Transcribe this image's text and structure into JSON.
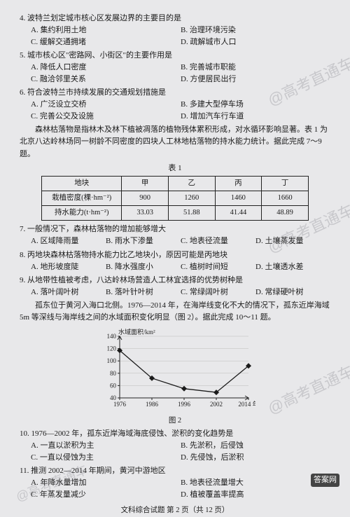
{
  "watermarks": {
    "t1": "@高考直通车",
    "t2": "@高考直通车",
    "t3": "@高考直通车",
    "t4": "@高考直通车",
    "t5": "答案网"
  },
  "q4": {
    "stem": "4. 波特兰划定城市核心区发展边界的主要目的是",
    "a": "A. 集约利用土地",
    "b": "B. 治理环境污染",
    "c": "C. 缓解交通拥堵",
    "d": "D. 疏解城市人口"
  },
  "q5": {
    "stem": "5. 城市核心区\"密路网、小街区\"的主要作用是",
    "a": "A. 降低人口密度",
    "b": "B. 完善城市职能",
    "c": "C. 融洽邻里关系",
    "d": "D. 方便居民出行"
  },
  "q6": {
    "stem": "6. 符合波特兰市持续发展的交通规划措施是",
    "a": "A. 广泛设立交桥",
    "b": "B. 多建大型停车场",
    "c": "C. 完善公交及设施",
    "d": "D. 增加汽车行车道"
  },
  "p1": "森林枯落物是指林木及林下植被凋落的植物残体累积形成，对水循环影响显著。表 1 为北京八达岭林场同一树龄不同密度的四块人工林地枯落物的持水能力统计。据此完成 7～9 题。",
  "table": {
    "title": "表 1",
    "headers": [
      "地块",
      "甲",
      "乙",
      "丙",
      "丁"
    ],
    "row1": [
      "栽植密度(棵·hm⁻²)",
      "900",
      "1260",
      "1460",
      "1660"
    ],
    "row2": [
      "持水能力(t·hm⁻²)",
      "33.03",
      "51.88",
      "41.44",
      "48.89"
    ]
  },
  "q7": {
    "stem": "7. 一般情况下，森林枯落物的增加能够增大",
    "a": "A. 区域降雨量",
    "b": "B. 雨水下渗量",
    "c": "C. 地表径流量",
    "d": "D. 土壤蒸发量"
  },
  "q8": {
    "stem": "8. 丙地块森林枯落物持水能力比乙地块小，原因可能是丙地块",
    "a": "A. 地形坡度陡",
    "b": "B. 降水强度小",
    "c": "C. 植树时间短",
    "d": "D. 土壤透水差"
  },
  "q9": {
    "stem": "9. 从地带性植被考虑，八达岭林场营造人工林宜选择的优势树种是",
    "a": "A. 落叶阔叶树",
    "b": "B. 落叶针叶树",
    "c": "C. 常绿阔叶树",
    "d": "D. 常绿硬叶树"
  },
  "p2": "孤东位于黄河入海口北侧。1976—2014 年，在海岸线变化不大的情况下，孤东近岸海域 5m 等深线与海岸线之间的水域面积变化明显（图 2）。据此完成 10～11 题。",
  "chart": {
    "ylabel": "水域面积/km²",
    "yticks": [
      "40",
      "60",
      "80",
      "100",
      "120",
      "140"
    ],
    "xticks": [
      "1976",
      "1986",
      "1996",
      "2002",
      "2014 年"
    ],
    "points": [
      [
        0,
        117
      ],
      [
        1,
        72
      ],
      [
        2,
        55
      ],
      [
        3,
        49
      ],
      [
        4,
        92
      ]
    ],
    "ylim": [
      40,
      140
    ],
    "line_color": "#1a1a1a",
    "marker": "diamond",
    "marker_size": 4,
    "caption": "图 2"
  },
  "q10": {
    "stem": "10. 1976—2002 年，孤东近岸海域海底侵蚀、淤积的变化趋势是",
    "a": "A. 一直以淤积为主",
    "b": "B. 先淤积，后侵蚀",
    "c": "C. 一直以侵蚀为主",
    "d": "D. 先侵蚀，后淤积"
  },
  "q11": {
    "stem": "11. 推测 2002—2014 年期间，黄河中游地区",
    "a": "A. 年降水量增加",
    "b": "B. 地表径流量增大",
    "c": "C. 年蒸发量减少",
    "d": "D. 植被覆盖率提高"
  },
  "footer": "文科综合试题  第 2 页（共 12 页）"
}
